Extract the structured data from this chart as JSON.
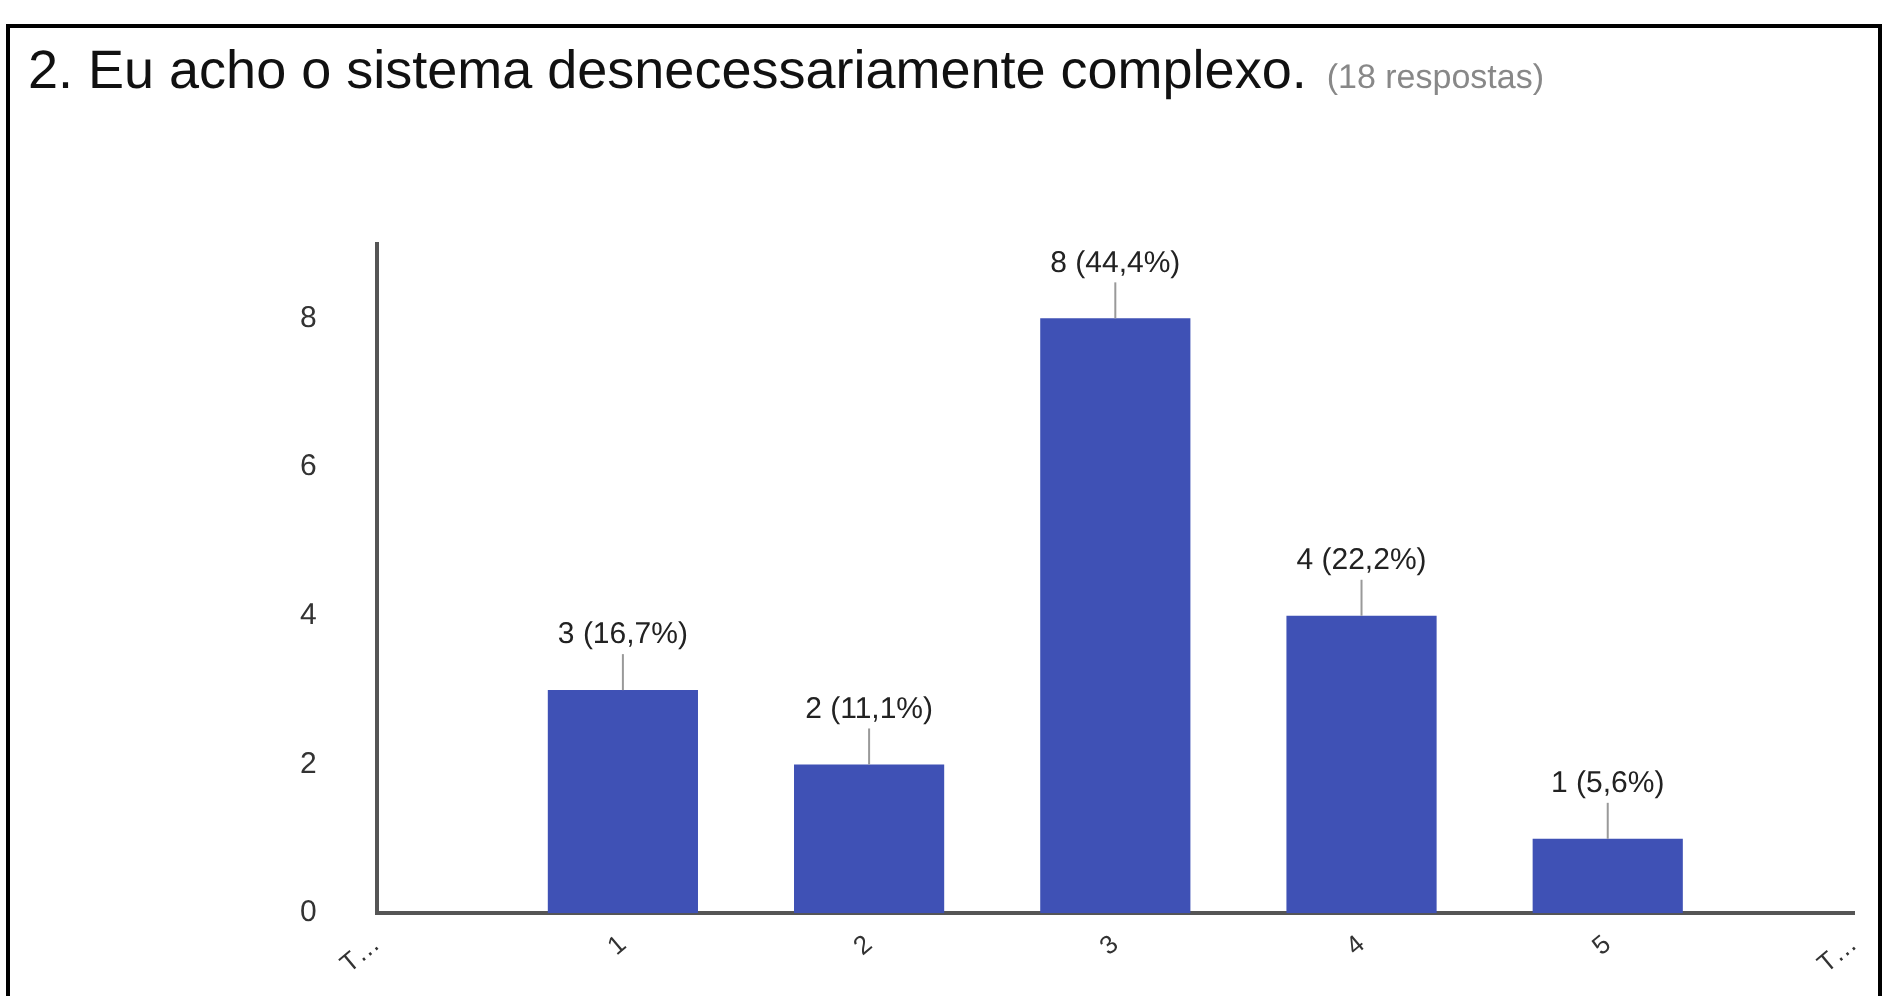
{
  "chart_data": {
    "type": "bar",
    "title": "2. Eu acho o sistema desnecessariamente complexo.",
    "subtitle": "(18 respostas)",
    "categories": [
      "T…",
      "1",
      "2",
      "3",
      "4",
      "5",
      "T…"
    ],
    "values": [
      null,
      3,
      2,
      8,
      4,
      1,
      null
    ],
    "value_labels": [
      null,
      "3 (16,7%)",
      "2 (11,1%)",
      "8 (44,4%)",
      "4 (22,2%)",
      "1 (5,6%)",
      null
    ],
    "color": "#3f51b5",
    "ylim": [
      0,
      9
    ],
    "yticks": [
      0,
      2,
      4,
      6,
      8
    ],
    "grid": false,
    "legend": false
  }
}
